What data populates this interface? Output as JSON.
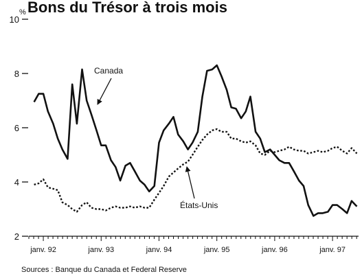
{
  "chart_data": {
    "type": "line",
    "title": "Bons du Trésor à trois mois",
    "ylabel": "%",
    "xlabel": "",
    "ylim": [
      2,
      10
    ],
    "yticks": [
      2,
      4,
      6,
      8,
      10
    ],
    "xlim": [
      1991.75,
      1997.45
    ],
    "x_ticks": [
      {
        "value": 1992.0,
        "label": "janv. 92"
      },
      {
        "value": 1993.0,
        "label": "janv. 93"
      },
      {
        "value": 1994.0,
        "label": "janv. 94"
      },
      {
        "value": 1995.0,
        "label": "janv. 95"
      },
      {
        "value": 1996.0,
        "label": "janv. 96"
      },
      {
        "value": 1997.0,
        "label": "janv. 97"
      }
    ],
    "grid": false,
    "legend": "none",
    "source": "Sources : Banque du Canada et Federal Reserve",
    "colors": {
      "line": "#111111",
      "background": "#ffffff"
    },
    "series": [
      {
        "name": "Canada",
        "style": "solid",
        "x": [
          1991.84,
          1991.92,
          1992.0,
          1992.08,
          1992.17,
          1992.25,
          1992.33,
          1992.42,
          1992.5,
          1992.58,
          1992.67,
          1992.75,
          1992.83,
          1992.92,
          1993.0,
          1993.08,
          1993.17,
          1993.25,
          1993.33,
          1993.42,
          1993.5,
          1993.58,
          1993.67,
          1993.75,
          1993.83,
          1993.92,
          1994.0,
          1994.08,
          1994.17,
          1994.25,
          1994.33,
          1994.42,
          1994.5,
          1994.58,
          1994.67,
          1994.75,
          1994.83,
          1994.92,
          1995.0,
          1995.08,
          1995.17,
          1995.25,
          1995.33,
          1995.42,
          1995.5,
          1995.58,
          1995.67,
          1995.75,
          1995.83,
          1995.92,
          1996.0,
          1996.08,
          1996.17,
          1996.25,
          1996.33,
          1996.42,
          1996.5,
          1996.58,
          1996.67,
          1996.75,
          1996.83,
          1996.92,
          1997.0,
          1997.08,
          1997.17,
          1997.25,
          1997.33,
          1997.42
        ],
        "y": [
          6.95,
          7.25,
          7.25,
          6.6,
          6.15,
          5.6,
          5.2,
          4.85,
          7.6,
          6.15,
          8.15,
          7.0,
          6.5,
          5.9,
          5.35,
          5.35,
          4.8,
          4.55,
          4.05,
          4.6,
          4.7,
          4.4,
          4.05,
          3.9,
          3.65,
          3.85,
          5.45,
          5.9,
          6.15,
          6.4,
          5.75,
          5.5,
          5.2,
          5.45,
          5.85,
          7.15,
          8.1,
          8.15,
          8.3,
          7.9,
          7.4,
          6.75,
          6.7,
          6.35,
          6.6,
          7.15,
          5.85,
          5.6,
          5.1,
          5.2,
          5.0,
          4.8,
          4.7,
          4.7,
          4.4,
          4.05,
          3.85,
          3.15,
          2.75,
          2.85,
          2.85,
          2.9,
          3.15,
          3.15,
          3.0,
          2.85,
          3.3,
          3.1
        ],
        "label_text": "Canada"
      },
      {
        "name": "États-Unis",
        "style": "dotted",
        "x": [
          1991.84,
          1991.92,
          1992.0,
          1992.08,
          1992.17,
          1992.25,
          1992.33,
          1992.42,
          1992.5,
          1992.58,
          1992.67,
          1992.75,
          1992.83,
          1992.92,
          1993.0,
          1993.08,
          1993.17,
          1993.25,
          1993.33,
          1993.42,
          1993.5,
          1993.58,
          1993.67,
          1993.75,
          1993.83,
          1993.92,
          1994.0,
          1994.08,
          1994.17,
          1994.25,
          1994.33,
          1994.42,
          1994.5,
          1994.58,
          1994.67,
          1994.75,
          1994.83,
          1994.92,
          1995.0,
          1995.08,
          1995.17,
          1995.25,
          1995.33,
          1995.42,
          1995.5,
          1995.58,
          1995.67,
          1995.75,
          1995.83,
          1995.92,
          1996.0,
          1996.08,
          1996.17,
          1996.25,
          1996.33,
          1996.42,
          1996.5,
          1996.58,
          1996.67,
          1996.75,
          1996.83,
          1996.92,
          1997.0,
          1997.08,
          1997.17,
          1997.25,
          1997.33,
          1997.42
        ],
        "y": [
          3.9,
          3.95,
          4.1,
          3.8,
          3.75,
          3.7,
          3.25,
          3.15,
          3.0,
          2.9,
          3.15,
          3.25,
          3.05,
          3.0,
          3.0,
          2.95,
          3.05,
          3.1,
          3.05,
          3.05,
          3.1,
          3.05,
          3.1,
          3.05,
          3.05,
          3.35,
          3.6,
          3.85,
          4.2,
          4.35,
          4.5,
          4.65,
          4.75,
          5.0,
          5.3,
          5.55,
          5.75,
          5.9,
          5.95,
          5.85,
          5.85,
          5.6,
          5.6,
          5.5,
          5.45,
          5.5,
          5.35,
          5.05,
          5.0,
          5.15,
          5.1,
          5.15,
          5.2,
          5.3,
          5.2,
          5.15,
          5.15,
          5.05,
          5.1,
          5.15,
          5.1,
          5.15,
          5.25,
          5.3,
          5.15,
          5.05,
          5.25,
          5.05
        ],
        "label_text": "États-Unis"
      }
    ]
  }
}
